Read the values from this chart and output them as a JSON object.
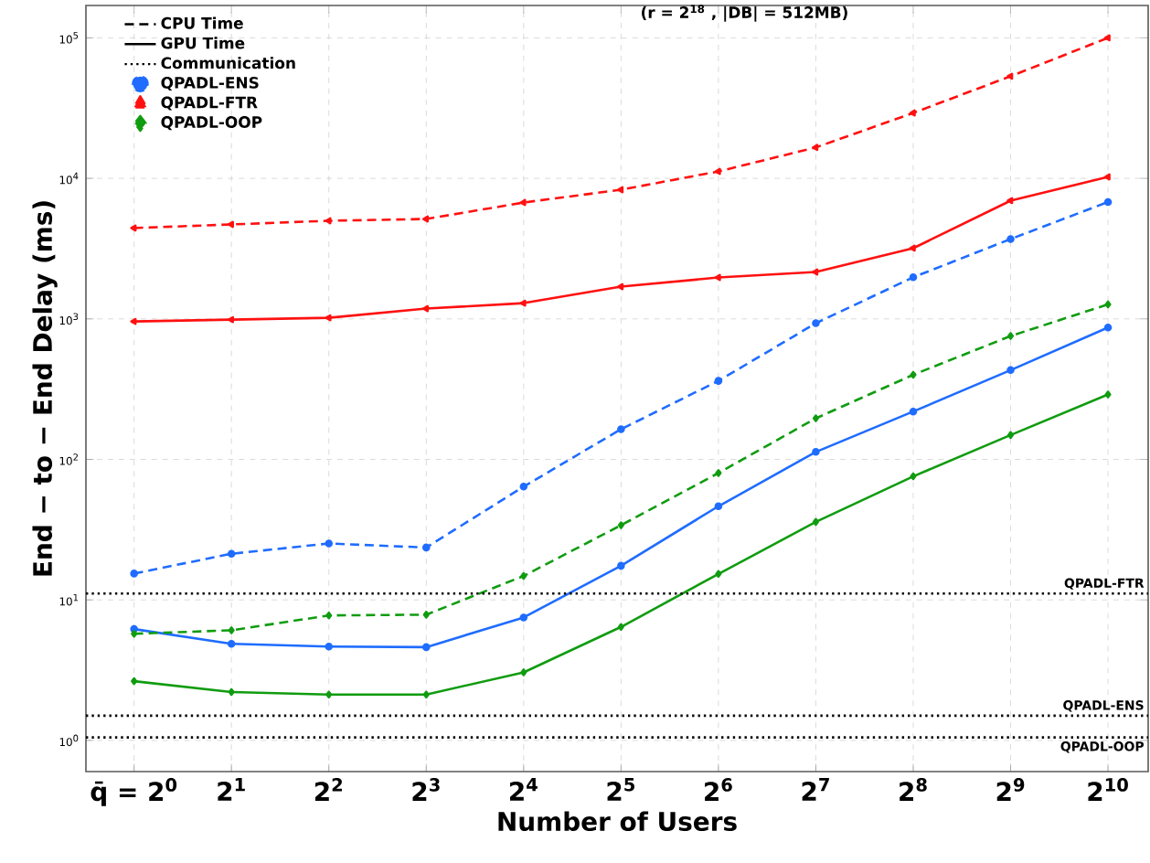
{
  "chart_data": {
    "type": "line",
    "title": "(r = 2$^{18}$ , |DB| = 512MB)",
    "xlabel": "Number of Users",
    "ylabel": "End − to − End Delay (ms)",
    "x": [
      1,
      2,
      4,
      8,
      16,
      32,
      64,
      128,
      256,
      512,
      1024
    ],
    "series": [
      {
        "name": "QPADL-ENS",
        "color": "#1f6cff",
        "line_style": "dashed",
        "marker": "circle",
        "values": [
          15.4,
          21.3,
          25.2,
          23.6,
          64,
          164,
          362,
          931,
          1977,
          3700,
          6790
        ]
      },
      {
        "color": "#1f6cff",
        "line_style": "solid",
        "marker": "circle",
        "values": [
          6.2,
          4.87,
          4.66,
          4.61,
          7.5,
          17.5,
          46.4,
          113,
          219,
          432,
          868
        ]
      },
      {
        "name": "QPADL-FTR",
        "color": "#ff1010",
        "line_style": "dashed",
        "marker": "triangle",
        "values": [
          4430,
          4700,
          4990,
          5140,
          6730,
          8300,
          11200,
          16600,
          29200,
          53300,
          100000
        ]
      },
      {
        "color": "#ff1010",
        "line_style": "solid",
        "marker": "triangle",
        "values": [
          959,
          988,
          1018,
          1183,
          1294,
          1695,
          1970,
          2155,
          3185,
          6940,
          10240
        ]
      },
      {
        "name": "QPADL-OOP",
        "color": "#109c10",
        "line_style": "dashed",
        "marker": "diamond",
        "values": [
          5.74,
          6.08,
          7.75,
          7.85,
          14.8,
          34,
          80,
          196,
          400,
          755,
          1268
        ]
      },
      {
        "color": "#109c10",
        "line_style": "solid",
        "marker": "diamond",
        "values": [
          2.64,
          2.21,
          2.12,
          2.12,
          3.05,
          6.42,
          15.3,
          35.9,
          75.7,
          149,
          290
        ]
      }
    ],
    "ref_lines": [
      {
        "axis": "y",
        "value": 11.1,
        "label": "QPADL-FTR",
        "color": "#000000",
        "line_style": "dotted"
      },
      {
        "axis": "y",
        "value": 1.5,
        "label": "QPADL-ENS",
        "color": "#000000",
        "line_style": "dotted"
      },
      {
        "axis": "y",
        "value": 1.05,
        "label": "QPADL-OOP",
        "color": "#000000",
        "line_style": "dotted"
      }
    ],
    "annotations": [
      "CPU Time",
      "GPU Time",
      "Communication"
    ],
    "log": "xy",
    "grid": true,
    "legend": "top left",
    "xlim": [
      0.71,
      1363
    ],
    "ylim": [
      0.6,
      170000
    ],
    "xticks": [
      {
        "value": 1,
        "label": "q̄ = 2$^{0}$"
      },
      {
        "value": 2,
        "label": "2$^{1}$"
      },
      {
        "value": 4,
        "label": "2$^{2}$"
      },
      {
        "value": 8,
        "label": "2$^{3}$"
      },
      {
        "value": 16,
        "label": "2$^{4}$"
      },
      {
        "value": 32,
        "label": "2$^{5}$"
      },
      {
        "value": 64,
        "label": "2$^{6}$"
      },
      {
        "value": 128,
        "label": "2$^{7}$"
      },
      {
        "value": 256,
        "label": "2$^{8}$"
      },
      {
        "value": 512,
        "label": "2$^{9}$"
      },
      {
        "value": 1024,
        "label": "2$^{10}$"
      }
    ],
    "yticks": [
      {
        "value": 1,
        "label": "10$^{0}$"
      },
      {
        "value": 10,
        "label": "10$^{1}$"
      },
      {
        "value": 100,
        "label": "10$^{2}$"
      },
      {
        "value": 1000,
        "label": "10$^{3}$"
      },
      {
        "value": 10000,
        "label": "10$^{4}$"
      },
      {
        "value": 100000,
        "label": "10$^{5}$"
      }
    ]
  }
}
